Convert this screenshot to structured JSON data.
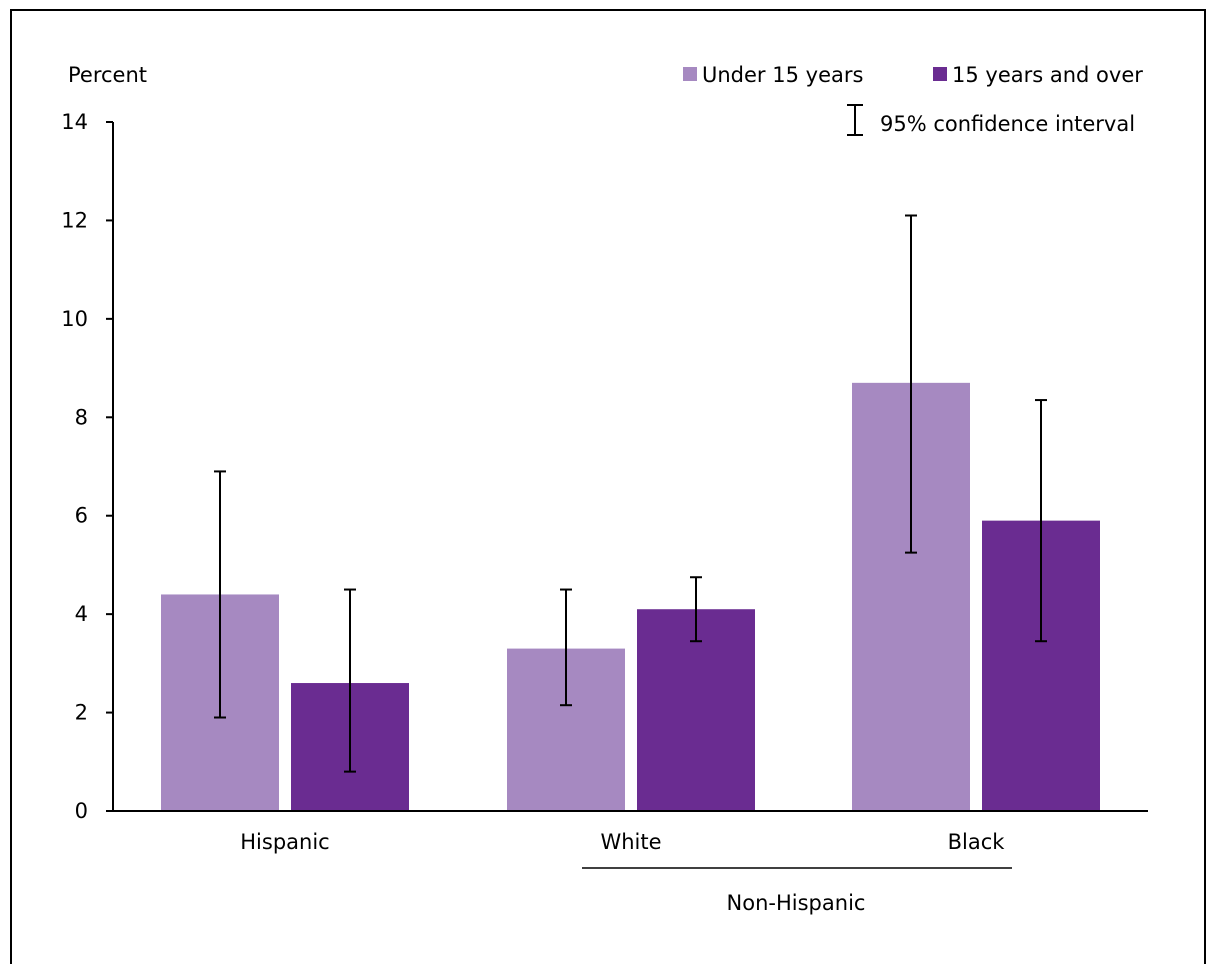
{
  "chart_data": {
    "type": "bar",
    "ylabel": "Percent",
    "ylim": [
      0,
      14
    ],
    "yticks": [
      0,
      2,
      4,
      6,
      8,
      10,
      12,
      14
    ],
    "categories": [
      "Hispanic",
      "White",
      "Black"
    ],
    "group_label": "Non-Hispanic",
    "grid": false,
    "legend_position": "top-right",
    "series": [
      {
        "name": "Under 15 years",
        "color": "#a689c1",
        "values": [
          4.4,
          3.3,
          8.7
        ],
        "ci_low": [
          1.9,
          2.15,
          5.25
        ],
        "ci_high": [
          6.9,
          4.5,
          12.1
        ]
      },
      {
        "name": "15 years and over",
        "color": "#6a2c91",
        "values": [
          2.6,
          4.1,
          5.9
        ],
        "ci_low": [
          0.8,
          3.45,
          3.45
        ],
        "ci_high": [
          4.5,
          4.75,
          8.35
        ]
      }
    ],
    "ci_legend_label": "95% confidence interval"
  }
}
